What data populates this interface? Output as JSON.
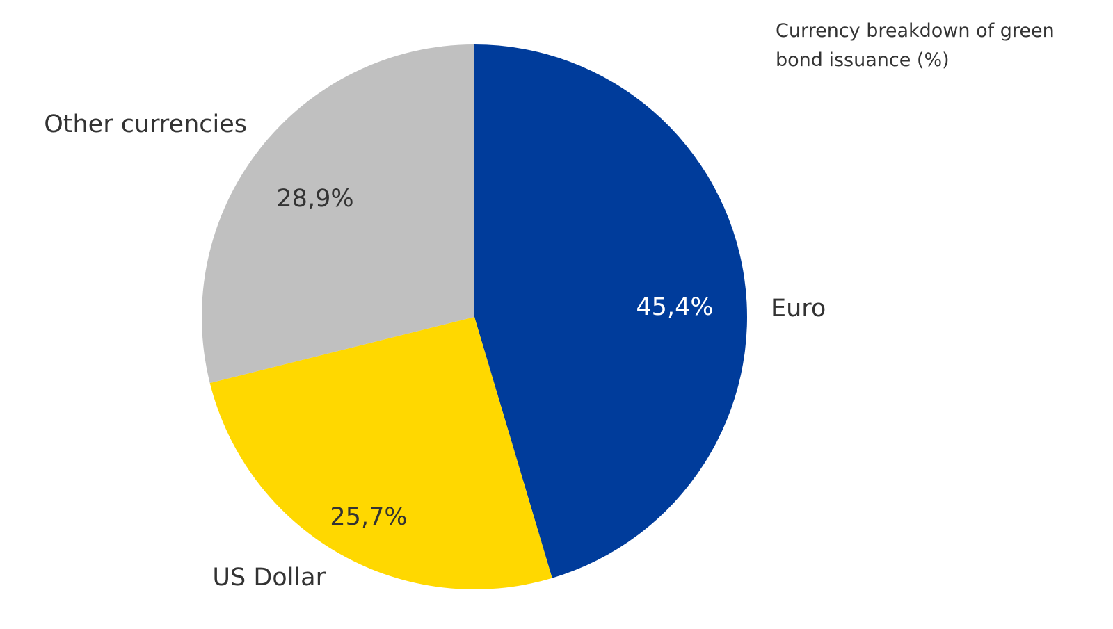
{
  "chart_data": {
    "type": "pie",
    "title": "Currency breakdown of green bond issuance (%)",
    "categories": [
      "Euro",
      "US Dollar",
      "Other currencies"
    ],
    "values": [
      45.4,
      25.7,
      28.9
    ],
    "value_labels": [
      "45,4%",
      "25,7%",
      "28,9%"
    ],
    "colors": [
      "#003c9b",
      "#ffd800",
      "#c0c0c0"
    ]
  }
}
